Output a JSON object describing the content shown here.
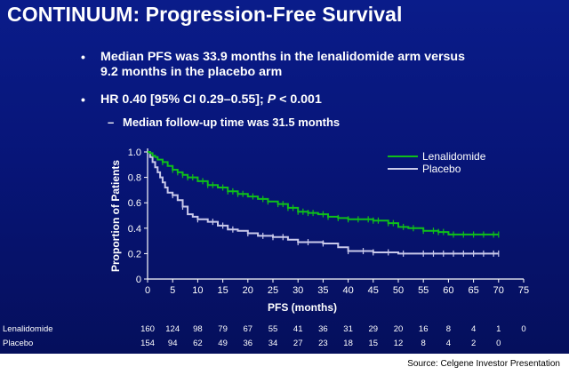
{
  "slide": {
    "title": "CONTINUUM: Progression-Free Survival",
    "bullets": [
      {
        "line1": "Median PFS was 33.9 months in the lenalidomide arm versus",
        "line2": "9.2 months in the placebo arm"
      },
      {
        "prefix": "HR 0.40 [95% CI 0.29–0.55]; ",
        "p": "P",
        "suffix": " < 0.001"
      }
    ],
    "sub_bullet": "Median follow-up time was 31.5 months",
    "bullet_glyph": "•",
    "dash_glyph": "–"
  },
  "source": "Source: Celgene Investor Presentation",
  "colors": {
    "lenalidomide": "#0fbf1a",
    "placebo": "#c9c9ea",
    "axis": "#ffffff",
    "background_top": "#0a1c8a",
    "background_bottom": "#050f5c"
  },
  "chart_data": {
    "type": "line",
    "title": "",
    "xlabel": "PFS (months)",
    "ylabel": "Proportion of Patients",
    "xlim": [
      0,
      75
    ],
    "ylim": [
      0,
      1.0
    ],
    "xticks": [
      0,
      5,
      10,
      15,
      20,
      25,
      30,
      35,
      40,
      45,
      50,
      55,
      60,
      65,
      70,
      75
    ],
    "yticks": [
      0,
      0.2,
      0.4,
      0.6,
      0.8,
      1.0
    ],
    "ytick_labels": [
      "0",
      "0.2",
      "0.4",
      "0.6",
      "0.8",
      "1.0"
    ],
    "grid": false,
    "legend_position": "top-right",
    "series": [
      {
        "name": "Lenalidomide",
        "x": [
          0,
          0.5,
          1,
          1.5,
          2,
          3,
          4,
          5,
          6,
          7,
          8,
          10,
          12,
          14,
          16,
          18,
          20,
          22,
          24,
          26,
          28,
          30,
          32,
          34,
          36,
          38,
          40,
          45,
          48,
          50,
          52,
          55,
          58,
          60,
          65,
          70
        ],
        "y": [
          1.0,
          0.99,
          0.97,
          0.96,
          0.94,
          0.92,
          0.89,
          0.86,
          0.84,
          0.82,
          0.8,
          0.77,
          0.74,
          0.72,
          0.69,
          0.67,
          0.65,
          0.63,
          0.61,
          0.59,
          0.56,
          0.53,
          0.52,
          0.51,
          0.49,
          0.48,
          0.47,
          0.46,
          0.44,
          0.41,
          0.4,
          0.38,
          0.37,
          0.35,
          0.35,
          0.35
        ]
      },
      {
        "name": "Placebo",
        "x": [
          0,
          0.5,
          1,
          1.5,
          2,
          2.5,
          3,
          3.5,
          4,
          5,
          6,
          7,
          8,
          9,
          10,
          12,
          14,
          16,
          18,
          20,
          22,
          25,
          28,
          30,
          35,
          38,
          40,
          45,
          48,
          50,
          55,
          60,
          65,
          70
        ],
        "y": [
          1.0,
          0.96,
          0.92,
          0.88,
          0.84,
          0.8,
          0.76,
          0.72,
          0.68,
          0.66,
          0.62,
          0.57,
          0.51,
          0.49,
          0.47,
          0.45,
          0.42,
          0.39,
          0.38,
          0.36,
          0.34,
          0.33,
          0.31,
          0.29,
          0.28,
          0.25,
          0.22,
          0.21,
          0.21,
          0.2,
          0.2,
          0.2,
          0.2,
          0.2
        ]
      }
    ],
    "censor_x": {
      "Lenalidomide": [
        3,
        5,
        6,
        7,
        8,
        9,
        11,
        12,
        13,
        15,
        16,
        17,
        18,
        19,
        21,
        23,
        24,
        26,
        27,
        28,
        29,
        30,
        31,
        32,
        33,
        35,
        36,
        38,
        40,
        42,
        44,
        45,
        46,
        48,
        49,
        51,
        53,
        55,
        57,
        58,
        59,
        61,
        63,
        65,
        67,
        69,
        70
      ],
      "Placebo": [
        5,
        7,
        10,
        13,
        15,
        17,
        20,
        23,
        25,
        27,
        30,
        32,
        35,
        40,
        43,
        45,
        48,
        51,
        55,
        57,
        59,
        61,
        63,
        65,
        67,
        69,
        70
      ]
    },
    "at_risk": {
      "x": [
        0,
        5,
        10,
        15,
        20,
        25,
        30,
        35,
        40,
        45,
        50,
        55,
        60,
        65,
        70,
        75
      ],
      "rows": [
        {
          "label": "Lenalidomide",
          "values": [
            "160",
            "124",
            "98",
            "79",
            "67",
            "55",
            "41",
            "36",
            "31",
            "29",
            "20",
            "16",
            "8",
            "4",
            "1",
            "0"
          ]
        },
        {
          "label": "Placebo",
          "values": [
            "154",
            "94",
            "62",
            "49",
            "36",
            "34",
            "27",
            "23",
            "18",
            "15",
            "12",
            "8",
            "4",
            "2",
            "0",
            ""
          ]
        }
      ]
    }
  }
}
